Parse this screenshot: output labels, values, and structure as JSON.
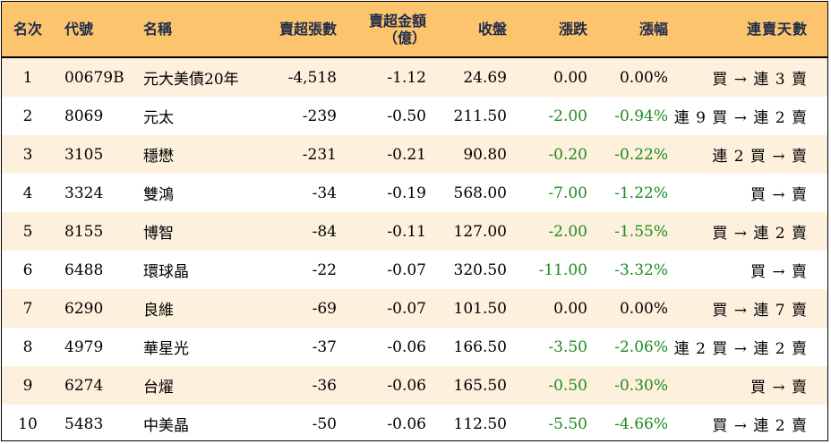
{
  "headers": {
    "rank": "名次",
    "code": "代號",
    "name": "名稱",
    "shares": "賣超張數",
    "amount_line1": "賣超金額",
    "amount_line2": "（億）",
    "close": "收盤",
    "change": "漲跌",
    "pct": "漲幅",
    "streak": "連賣天數"
  },
  "rows": [
    {
      "rank": "1",
      "code": "00679B",
      "name": "元大美債20年",
      "shares": "-4,518",
      "amount": "-1.12",
      "close": "24.69",
      "change": "0.00",
      "pct": "0.00%",
      "streak": "買 → 連 3 賣",
      "negative": false
    },
    {
      "rank": "2",
      "code": "8069",
      "name": "元太",
      "shares": "-239",
      "amount": "-0.50",
      "close": "211.50",
      "change": "-2.00",
      "pct": "-0.94%",
      "streak": "連 9 買 → 連 2 賣",
      "negative": true
    },
    {
      "rank": "3",
      "code": "3105",
      "name": "穩懋",
      "shares": "-231",
      "amount": "-0.21",
      "close": "90.80",
      "change": "-0.20",
      "pct": "-0.22%",
      "streak": "連 2 買 → 賣",
      "negative": true
    },
    {
      "rank": "4",
      "code": "3324",
      "name": "雙鴻",
      "shares": "-34",
      "amount": "-0.19",
      "close": "568.00",
      "change": "-7.00",
      "pct": "-1.22%",
      "streak": "買 → 賣",
      "negative": true
    },
    {
      "rank": "5",
      "code": "8155",
      "name": "博智",
      "shares": "-84",
      "amount": "-0.11",
      "close": "127.00",
      "change": "-2.00",
      "pct": "-1.55%",
      "streak": "買 → 連 2 賣",
      "negative": true
    },
    {
      "rank": "6",
      "code": "6488",
      "name": "環球晶",
      "shares": "-22",
      "amount": "-0.07",
      "close": "320.50",
      "change": "-11.00",
      "pct": "-3.32%",
      "streak": "買 → 賣",
      "negative": true
    },
    {
      "rank": "7",
      "code": "6290",
      "name": "良維",
      "shares": "-69",
      "amount": "-0.07",
      "close": "101.50",
      "change": "0.00",
      "pct": "0.00%",
      "streak": "買 → 連 7 賣",
      "negative": false
    },
    {
      "rank": "8",
      "code": "4979",
      "name": "華星光",
      "shares": "-37",
      "amount": "-0.06",
      "close": "166.50",
      "change": "-3.50",
      "pct": "-2.06%",
      "streak": "連 2 買 → 連 2 賣",
      "negative": true
    },
    {
      "rank": "9",
      "code": "6274",
      "name": "台燿",
      "shares": "-36",
      "amount": "-0.06",
      "close": "165.50",
      "change": "-0.50",
      "pct": "-0.30%",
      "streak": "買 → 賣",
      "negative": true
    },
    {
      "rank": "10",
      "code": "5483",
      "name": "中美晶",
      "shares": "-50",
      "amount": "-0.06",
      "close": "112.50",
      "change": "-5.50",
      "pct": "-4.66%",
      "streak": "買 → 連 2 賣",
      "negative": true
    }
  ],
  "colors": {
    "header_bg": "#fbc46d",
    "alt_row_bg": "#fdf0dc",
    "negative_text": "#1f8a1f"
  }
}
